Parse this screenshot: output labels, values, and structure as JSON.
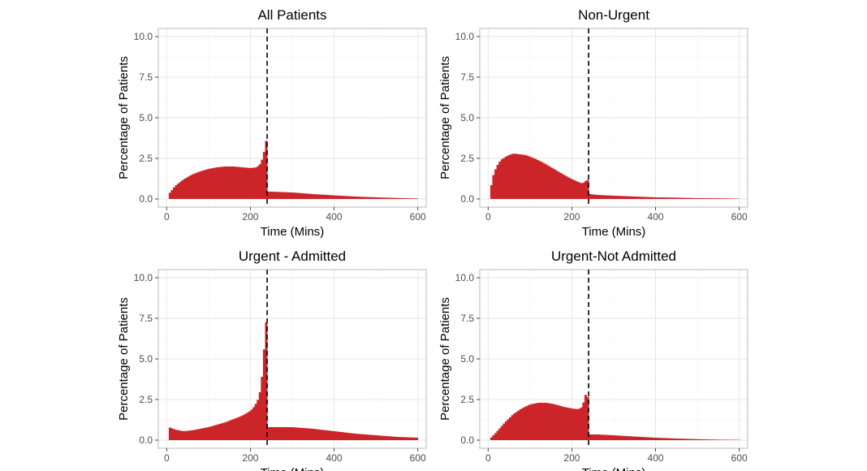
{
  "chart_data": [
    {
      "type": "area",
      "title": "All Patients",
      "xlabel": "Time (Mins)",
      "ylabel": "Percentage of Patients",
      "xlim": [
        -20,
        620
      ],
      "ylim": [
        -0.5,
        10.5
      ],
      "xticks": [
        0,
        200,
        400,
        600
      ],
      "yticks": [
        0.0,
        2.5,
        5.0,
        7.5,
        10.0
      ],
      "xtick_labels": [
        "0",
        "200",
        "400",
        "600"
      ],
      "ytick_labels": [
        "0.0",
        "2.5",
        "5.0",
        "7.5",
        "10.0"
      ],
      "vline": 240,
      "color": "#cc2529",
      "series": [
        {
          "name": "All Patients",
          "x": [
            5,
            20,
            40,
            60,
            80,
            100,
            120,
            140,
            160,
            180,
            200,
            215,
            225,
            232,
            236,
            240,
            242,
            250,
            300,
            350,
            400,
            450,
            500,
            550,
            600
          ],
          "y": [
            0.3,
            0.8,
            1.2,
            1.5,
            1.7,
            1.85,
            1.95,
            2.0,
            2.0,
            1.95,
            1.9,
            1.95,
            2.2,
            2.8,
            3.6,
            3.55,
            0.45,
            0.45,
            0.4,
            0.3,
            0.22,
            0.15,
            0.1,
            0.06,
            0.03
          ]
        }
      ]
    },
    {
      "type": "area",
      "title": "Non-Urgent",
      "xlabel": "Time (Mins)",
      "ylabel": "Percentage of Patients",
      "xlim": [
        -20,
        620
      ],
      "ylim": [
        -0.5,
        10.5
      ],
      "xticks": [
        0,
        200,
        400,
        600
      ],
      "yticks": [
        0.0,
        2.5,
        5.0,
        7.5,
        10.0
      ],
      "xtick_labels": [
        "0",
        "200",
        "400",
        "600"
      ],
      "ytick_labels": [
        "0.0",
        "2.5",
        "5.0",
        "7.5",
        "10.0"
      ],
      "vline": 240,
      "color": "#cc2529",
      "series": [
        {
          "name": "Non-Urgent",
          "x": [
            5,
            10,
            20,
            30,
            45,
            60,
            75,
            90,
            110,
            130,
            150,
            170,
            190,
            210,
            225,
            235,
            240,
            242,
            260,
            300,
            350,
            400,
            450,
            500,
            550,
            600
          ],
          "y": [
            0.4,
            1.3,
            2.0,
            2.4,
            2.65,
            2.8,
            2.75,
            2.7,
            2.5,
            2.25,
            1.95,
            1.65,
            1.35,
            1.1,
            0.95,
            1.15,
            1.2,
            0.3,
            0.25,
            0.2,
            0.15,
            0.1,
            0.08,
            0.05,
            0.04,
            0.02
          ]
        }
      ]
    },
    {
      "type": "area",
      "title": "Urgent - Admitted",
      "xlabel": "Time (Mins)",
      "ylabel": "Percentage of Patients",
      "xlim": [
        -20,
        620
      ],
      "ylim": [
        -0.5,
        10.5
      ],
      "xticks": [
        0,
        200,
        400,
        600
      ],
      "yticks": [
        0.0,
        2.5,
        5.0,
        7.5,
        10.0
      ],
      "xtick_labels": [
        "0",
        "200",
        "400",
        "600"
      ],
      "ytick_labels": [
        "0.0",
        "2.5",
        "5.0",
        "7.5",
        "10.0"
      ],
      "vline": 240,
      "color": "#cc2529",
      "series": [
        {
          "name": "Urgent - Admitted",
          "x": [
            5,
            10,
            20,
            40,
            60,
            80,
            100,
            120,
            140,
            160,
            180,
            200,
            210,
            220,
            225,
            230,
            233,
            236,
            239,
            240,
            242,
            260,
            300,
            350,
            400,
            450,
            500,
            550,
            600
          ],
          "y": [
            0.8,
            0.75,
            0.65,
            0.55,
            0.6,
            0.7,
            0.8,
            0.95,
            1.1,
            1.3,
            1.5,
            1.8,
            2.1,
            2.6,
            3.3,
            4.5,
            5.8,
            7.0,
            7.5,
            7.5,
            0.8,
            0.8,
            0.8,
            0.7,
            0.55,
            0.4,
            0.3,
            0.2,
            0.15
          ]
        }
      ]
    },
    {
      "type": "area",
      "title": "Urgent-Not Admitted",
      "xlabel": "Time (Mins)",
      "ylabel": "Percentage of Patients",
      "xlim": [
        -20,
        620
      ],
      "ylim": [
        -0.5,
        10.5
      ],
      "xticks": [
        0,
        200,
        400,
        600
      ],
      "yticks": [
        0.0,
        2.5,
        5.0,
        7.5,
        10.0
      ],
      "xtick_labels": [
        "0",
        "200",
        "400",
        "600"
      ],
      "ytick_labels": [
        "0.0",
        "2.5",
        "5.0",
        "7.5",
        "10.0"
      ],
      "vline": 240,
      "color": "#cc2529",
      "series": [
        {
          "name": "Urgent-Not Admitted",
          "x": [
            5,
            20,
            40,
            60,
            80,
            100,
            120,
            140,
            160,
            180,
            200,
            215,
            225,
            232,
            236,
            240,
            242,
            260,
            300,
            350,
            400,
            450,
            500,
            550,
            600
          ],
          "y": [
            0.1,
            0.5,
            1.1,
            1.6,
            1.95,
            2.2,
            2.3,
            2.3,
            2.2,
            2.05,
            1.95,
            1.9,
            2.05,
            2.8,
            2.7,
            2.6,
            0.35,
            0.35,
            0.3,
            0.22,
            0.15,
            0.1,
            0.06,
            0.03,
            0.02
          ]
        }
      ]
    }
  ]
}
